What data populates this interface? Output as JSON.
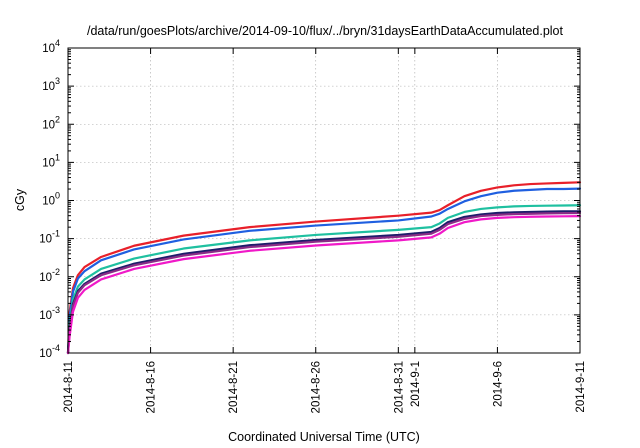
{
  "chart_data": {
    "type": "line",
    "title": "/data/run/goesPlots/archive/2014-09-10/flux/../bryn/31daysEarthDataAccumulated.plot",
    "xlabel": "Coordinated Universal Time (UTC)",
    "ylabel": "cGy",
    "yscale": "log",
    "ylim": [
      0.0001,
      10000
    ],
    "xlim": [
      0,
      31
    ],
    "grid": true,
    "legend": "none",
    "x_ticks": [
      {
        "x": 0,
        "label": "2014-8-11"
      },
      {
        "x": 5,
        "label": "2014-8-16"
      },
      {
        "x": 10,
        "label": "2014-8-21"
      },
      {
        "x": 15,
        "label": "2014-8-26"
      },
      {
        "x": 20,
        "label": "2014-8-31"
      },
      {
        "x": 21,
        "label": "2014-9-1"
      },
      {
        "x": 26,
        "label": "2014-9-6"
      },
      {
        "x": 31,
        "label": "2014-9-11"
      }
    ],
    "y_ticks": [
      {
        "exp": -4,
        "base": "10",
        "sup": "-4"
      },
      {
        "exp": -3,
        "base": "10",
        "sup": "-3"
      },
      {
        "exp": -2,
        "base": "10",
        "sup": "-2"
      },
      {
        "exp": -1,
        "base": "10",
        "sup": "-1"
      },
      {
        "exp": 0,
        "base": "10",
        "sup": "0"
      },
      {
        "exp": 1,
        "base": "10",
        "sup": "1"
      },
      {
        "exp": 2,
        "base": "10",
        "sup": "2"
      },
      {
        "exp": 3,
        "base": "10",
        "sup": "3"
      },
      {
        "exp": 4,
        "base": "10",
        "sup": "4"
      }
    ],
    "series": [
      {
        "color": "#e8202a",
        "x": [
          0,
          0.1,
          0.3,
          0.6,
          1,
          2,
          4,
          7,
          11,
          15,
          20,
          22,
          22.5,
          23,
          24,
          25,
          26,
          27,
          28,
          29,
          30,
          31
        ],
        "y": [
          0.0001,
          0.0012,
          0.005,
          0.011,
          0.018,
          0.033,
          0.065,
          0.12,
          0.2,
          0.28,
          0.4,
          0.48,
          0.56,
          0.75,
          1.3,
          1.8,
          2.2,
          2.5,
          2.7,
          2.8,
          2.9,
          3.0
        ]
      },
      {
        "color": "#1f5fe0",
        "x": [
          0,
          0.1,
          0.3,
          0.6,
          1,
          2,
          4,
          7,
          11,
          15,
          20,
          22,
          22.5,
          23,
          24,
          25,
          26,
          27,
          28,
          29,
          30,
          31
        ],
        "y": [
          0.0001,
          0.0009,
          0.004,
          0.009,
          0.014,
          0.027,
          0.052,
          0.095,
          0.16,
          0.22,
          0.3,
          0.38,
          0.45,
          0.6,
          0.95,
          1.3,
          1.6,
          1.8,
          1.9,
          2.0,
          2.0,
          2.05
        ]
      },
      {
        "color": "#1fc0a0",
        "x": [
          0,
          0.1,
          0.3,
          0.6,
          1,
          2,
          4,
          7,
          11,
          15,
          20,
          22,
          22.5,
          23,
          24,
          25,
          26,
          27,
          28,
          29,
          30,
          31
        ],
        "y": [
          0.0001,
          0.0006,
          0.0025,
          0.0055,
          0.0085,
          0.016,
          0.03,
          0.055,
          0.09,
          0.125,
          0.17,
          0.2,
          0.25,
          0.35,
          0.5,
          0.6,
          0.66,
          0.7,
          0.72,
          0.73,
          0.74,
          0.75
        ]
      },
      {
        "color": "#1c1c6a",
        "x": [
          0,
          0.1,
          0.3,
          0.6,
          1,
          2,
          4,
          7,
          11,
          15,
          20,
          22,
          22.5,
          23,
          24,
          25,
          26,
          27,
          28,
          29,
          30,
          31
        ],
        "y": [
          0.0001,
          0.00045,
          0.0019,
          0.0042,
          0.0065,
          0.012,
          0.022,
          0.04,
          0.067,
          0.092,
          0.125,
          0.15,
          0.19,
          0.27,
          0.37,
          0.43,
          0.47,
          0.49,
          0.5,
          0.51,
          0.52,
          0.52
        ]
      },
      {
        "color": "#8a2c86",
        "x": [
          0,
          0.1,
          0.3,
          0.6,
          1,
          2,
          4,
          7,
          11,
          15,
          20,
          22,
          22.5,
          23,
          24,
          25,
          26,
          27,
          28,
          29,
          30,
          31
        ],
        "y": [
          0.0001,
          0.0004,
          0.0017,
          0.0038,
          0.006,
          0.011,
          0.02,
          0.036,
          0.06,
          0.083,
          0.112,
          0.135,
          0.17,
          0.24,
          0.33,
          0.39,
          0.42,
          0.44,
          0.45,
          0.46,
          0.465,
          0.47
        ]
      },
      {
        "color": "#f019c8",
        "x": [
          0,
          0.1,
          0.3,
          0.6,
          1,
          2,
          4,
          7,
          11,
          15,
          20,
          22,
          22.5,
          23,
          24,
          25,
          26,
          27,
          28,
          29,
          30,
          31
        ],
        "y": [
          0.0001,
          0.00028,
          0.0012,
          0.0028,
          0.0045,
          0.0085,
          0.016,
          0.029,
          0.048,
          0.066,
          0.09,
          0.108,
          0.135,
          0.19,
          0.27,
          0.32,
          0.35,
          0.365,
          0.375,
          0.38,
          0.385,
          0.39
        ]
      }
    ]
  }
}
